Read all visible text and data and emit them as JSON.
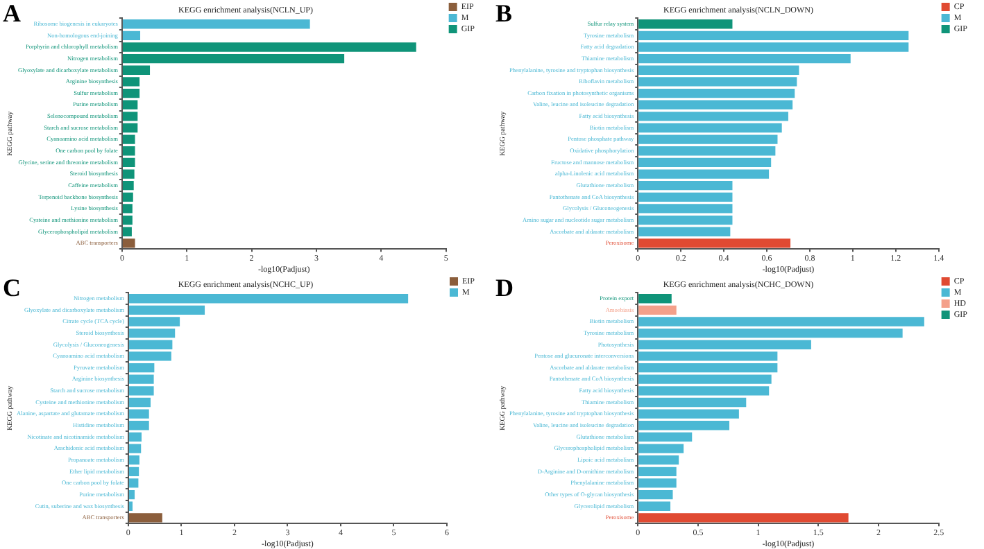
{
  "chart_data": [
    {
      "type": "bar",
      "orientation": "horizontal",
      "stacked": true,
      "title": "KEGG enrichment analysis(NCLN_UP)",
      "xlabel": "-log10(Padjust)",
      "ylabel": "KEGG pathway",
      "annotations": [
        "A"
      ],
      "legend": "top right",
      "xlim": [
        0,
        5
      ],
      "xticks": [
        0,
        1,
        2,
        3,
        4,
        5
      ],
      "categories": [
        "Ribosome biogenesis in eukaryotes",
        "Non-homologous end-joining",
        "Porphyrin and chlorophyll metabolism",
        "Nitrogen metabolism",
        "Glyoxylate and dicarboxylate metabolism",
        "Arginine biosynthesis",
        "Sulfur metabolism",
        "Purine metabolism",
        "Selenocompound metabolism",
        "Starch and sucrose metabolism",
        "Cyanoamino acid metabolism",
        "One carbon pool by folate",
        "Glycine, serine and threonine metabolism",
        "Steroid biosynthesis",
        "Caffeine metabolism",
        "Terpenoid backbone biosynthesis",
        "Lysine biosynthesis",
        "Cysteine and methionine metabolism",
        "Glycerophospholipid metabolism",
        "ABC transporters"
      ],
      "series": [
        {
          "name": "EIP",
          "color": "#8b5e3c",
          "values": [
            null,
            null,
            null,
            null,
            null,
            null,
            null,
            null,
            null,
            null,
            null,
            null,
            null,
            null,
            null,
            null,
            null,
            null,
            null,
            0.2
          ]
        },
        {
          "name": "M",
          "color": "#4bb8d4",
          "values": [
            2.9,
            0.28,
            null,
            null,
            null,
            null,
            null,
            null,
            null,
            null,
            null,
            null,
            null,
            null,
            null,
            null,
            null,
            null,
            null,
            null
          ]
        },
        {
          "name": "GIP",
          "color": "#0f9479",
          "values": [
            null,
            null,
            4.54,
            3.43,
            0.43,
            0.27,
            0.27,
            0.24,
            0.24,
            0.24,
            0.2,
            0.2,
            0.2,
            0.19,
            0.18,
            0.17,
            0.16,
            0.16,
            0.15,
            null
          ]
        }
      ]
    },
    {
      "type": "bar",
      "orientation": "horizontal",
      "stacked": true,
      "title": "KEGG enrichment analysis(NCLN_DOWN)",
      "xlabel": "-log10(Padjust)",
      "ylabel": "KEGG pathway",
      "annotations": [
        "B"
      ],
      "legend": "top right",
      "xlim": [
        0,
        1.4
      ],
      "xticks": [
        0,
        0.2,
        0.4,
        0.6,
        0.8,
        1,
        1.2,
        1.4
      ],
      "categories": [
        "Sulfur relay system",
        "Tyrosine metabolism",
        "Fatty acid degradation",
        "Thiamine metabolism",
        "Phenylalanine, tyrosine and tryptophan biosynthesis",
        "Riboflavin metabolism",
        "Carbon fixation in photosynthetic organisms",
        "Valine, leucine and isoleucine degradation",
        "Fatty acid biosynthesis",
        "Biotin metabolism",
        "Pentose phosphate pathway",
        "Oxidative phosphorylation",
        "Fructose and mannose metabolism",
        "alpha-Linolenic acid metabolism",
        "Glutathione metabolism",
        "Pantothenate and CoA biosynthesis",
        "Glycolysis / Gluconeogenesis",
        "Amino sugar and nucleotide sugar metabolism",
        "Ascorbate and aldarate metabolism",
        "Peroxisome"
      ],
      "series": [
        {
          "name": "CP",
          "color": "#e04a32",
          "values": [
            null,
            null,
            null,
            null,
            null,
            null,
            null,
            null,
            null,
            null,
            null,
            null,
            null,
            null,
            null,
            null,
            null,
            null,
            null,
            0.71
          ]
        },
        {
          "name": "M",
          "color": "#4bb8d4",
          "values": [
            null,
            1.26,
            1.26,
            0.99,
            0.75,
            0.74,
            0.73,
            0.72,
            0.7,
            0.67,
            0.65,
            0.64,
            0.62,
            0.61,
            0.44,
            0.44,
            0.44,
            0.44,
            0.43,
            null
          ]
        },
        {
          "name": "GIP",
          "color": "#0f9479",
          "values": [
            0.44,
            null,
            null,
            null,
            null,
            null,
            null,
            null,
            null,
            null,
            null,
            null,
            null,
            null,
            null,
            null,
            null,
            null,
            null,
            null
          ]
        }
      ]
    },
    {
      "type": "bar",
      "orientation": "horizontal",
      "stacked": true,
      "title": "KEGG enrichment analysis(NCHC_UP)",
      "xlabel": "-log10(Padjust)",
      "ylabel": "KEGG pathway",
      "annotations": [
        "C"
      ],
      "legend": "top right",
      "xlim": [
        0,
        6
      ],
      "xticks": [
        0,
        1,
        2,
        3,
        4,
        5,
        6
      ],
      "categories": [
        "Nitrogen metabolism",
        "Glyoxylate and dicarboxylate metabolism",
        "Citrate cycle (TCA cycle)",
        "Steroid biosynthesis",
        "Glycolysis / Gluconeogenesis",
        "Cyanoamino acid metabolism",
        "Pyruvate metabolism",
        "Arginine biosynthesis",
        "Starch and sucrose metabolism",
        "Cysteine and methionine metabolism",
        "Alanine, aspartate and glutamate metabolism",
        "Histidine metabolism",
        "Nicotinate and nicotinamide metabolism",
        "Arachidonic acid metabolism",
        "Propanoate metabolism",
        "Ether lipid metabolism",
        "One carbon pool by folate",
        "Purine metabolism",
        "Cutin, suberine and wax biosynthesis",
        "ABC transporters"
      ],
      "series": [
        {
          "name": "EIP",
          "color": "#8b5e3c",
          "values": [
            null,
            null,
            null,
            null,
            null,
            null,
            null,
            null,
            null,
            null,
            null,
            null,
            null,
            null,
            null,
            null,
            null,
            null,
            null,
            0.64
          ]
        },
        {
          "name": "M",
          "color": "#4bb8d4",
          "values": [
            5.27,
            1.44,
            0.97,
            0.88,
            0.83,
            0.81,
            0.49,
            0.48,
            0.48,
            0.42,
            0.39,
            0.39,
            0.25,
            0.24,
            0.21,
            0.2,
            0.19,
            0.12,
            0.08,
            null
          ]
        }
      ]
    },
    {
      "type": "bar",
      "orientation": "horizontal",
      "stacked": true,
      "title": "KEGG enrichment analysis(NCHC_DOWN)",
      "xlabel": "-log10(Padjust)",
      "ylabel": "KEGG pathway",
      "annotations": [
        "D"
      ],
      "legend": "top right",
      "xlim": [
        0,
        2.5
      ],
      "xticks": [
        0,
        0.5,
        1,
        1.5,
        2,
        2.5
      ],
      "categories": [
        "Protein export",
        "Amoebiasis",
        "Biotin metabolism",
        "Tyrosine metabolism",
        "Photosynthesis",
        "Pentose and glucuronate interconversions",
        "Ascorbate and aldarate metabolism",
        "Pantothenate and CoA biosynthesis",
        "Fatty acid biosynthesis",
        "Thiamine metabolism",
        "Phenylalanine, tyrosine and tryptophan biosynthesis",
        "Valine, leucine and isoleucine degradation",
        "Glutathione metabolism",
        "Glycerophospholipid metabolism",
        "Lipoic acid metabolism",
        "D-Arginine and D-ornithine metabolism",
        "Phenylalanine metabolism",
        "Other types of O-glycan biosynthesis",
        "Glycerolipid metabolism",
        "Peroxisome"
      ],
      "series": [
        {
          "name": "CP",
          "color": "#e04a32",
          "values": [
            null,
            null,
            null,
            null,
            null,
            null,
            null,
            null,
            null,
            null,
            null,
            null,
            null,
            null,
            null,
            null,
            null,
            null,
            null,
            1.75
          ]
        },
        {
          "name": "M",
          "color": "#4bb8d4",
          "values": [
            null,
            null,
            2.38,
            2.2,
            1.44,
            1.16,
            1.16,
            1.11,
            1.09,
            0.9,
            0.84,
            0.76,
            0.45,
            0.38,
            0.34,
            0.32,
            0.32,
            0.29,
            0.27,
            null
          ]
        },
        {
          "name": "HD",
          "color": "#f4a08a",
          "values": [
            null,
            0.32,
            null,
            null,
            null,
            null,
            null,
            null,
            null,
            null,
            null,
            null,
            null,
            null,
            null,
            null,
            null,
            null,
            null,
            null
          ]
        },
        {
          "name": "GIP",
          "color": "#0f9479",
          "values": [
            0.28,
            null,
            null,
            null,
            null,
            null,
            null,
            null,
            null,
            null,
            null,
            null,
            null,
            null,
            null,
            null,
            null,
            null,
            null,
            null
          ]
        }
      ]
    }
  ]
}
